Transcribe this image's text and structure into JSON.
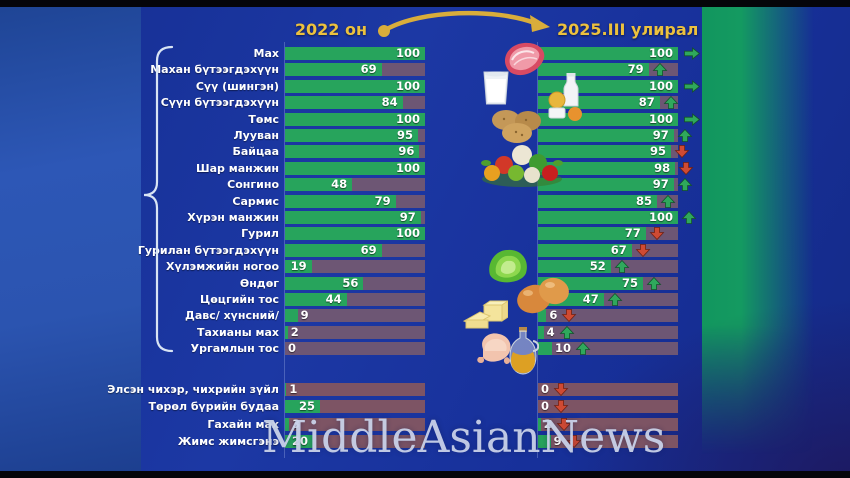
{
  "watermark": "MiddleAsianNews",
  "chart_data": {
    "type": "bar",
    "orientation": "horizontal",
    "value_range": [
      0,
      100
    ],
    "columns": [
      "2022 он",
      "2025.III улирал"
    ],
    "categories": [
      "Мах",
      "Махан бүтээгдэхүүн",
      "Сүү (шингэн)",
      "Сүүн бүтээгдэхүүн",
      "Төмс",
      "Лууван",
      "Байцаа",
      "Шар манжин",
      "Сонгино",
      "Сармис",
      "Хүрэн манжин",
      "Гурил",
      "Гурилан бүтээгдэхүүн",
      "Хүлэмжийн ногоо",
      "Өндөг",
      "Цөцгийн тос",
      "Давс/ хүнсний/",
      "Тахианы мах",
      "Ургамлын тос",
      "Элсэн чихэр, чихрийн зүйл",
      "Төрөл бүрийн будаа",
      "Гахайн мах",
      "Жимс жимсгэнэ"
    ],
    "series": [
      {
        "name": "2022 он",
        "values": [
          100,
          69,
          100,
          84,
          100,
          95,
          96,
          100,
          48,
          79,
          97,
          100,
          69,
          19,
          56,
          44,
          9,
          2,
          0,
          1,
          25,
          3,
          20
        ]
      },
      {
        "name": "2025.III улирал",
        "values": [
          100,
          79,
          100,
          87,
          100,
          97,
          95,
          98,
          97,
          85,
          100,
          77,
          67,
          52,
          75,
          47,
          6,
          4,
          10,
          0,
          0,
          2,
          9
        ]
      }
    ],
    "trends_2025": [
      "flat",
      "up",
      "flat",
      "up",
      "flat",
      "up",
      "down",
      "down",
      "up",
      "up",
      "up",
      "down",
      "down",
      "up",
      "up",
      "up",
      "down",
      "up",
      "up",
      "down",
      "down",
      "down",
      "down"
    ],
    "group_sizes": [
      19,
      4
    ],
    "colors": {
      "bar_fill": "#27a45c",
      "bar_remainder": "#6d5674",
      "bar_remainder_lower": "#7d5464",
      "accent_yellow": "#d9ad3b",
      "up_arrow": "#2fa85c",
      "down_arrow": "#cf4a33",
      "flat_arrow": "#2fa85c",
      "value_text": "#ffffff"
    }
  },
  "icons": [
    {
      "name": "meat-icon"
    },
    {
      "name": "milk-glass-icon"
    },
    {
      "name": "dairy-products-icon"
    },
    {
      "name": "potatoes-icon"
    },
    {
      "name": "vegetable-platter-icon"
    },
    {
      "name": "lettuce-icon"
    },
    {
      "name": "eggs-icon"
    },
    {
      "name": "butter-icon"
    },
    {
      "name": "chicken-icon"
    },
    {
      "name": "oil-bottle-icon"
    }
  ]
}
